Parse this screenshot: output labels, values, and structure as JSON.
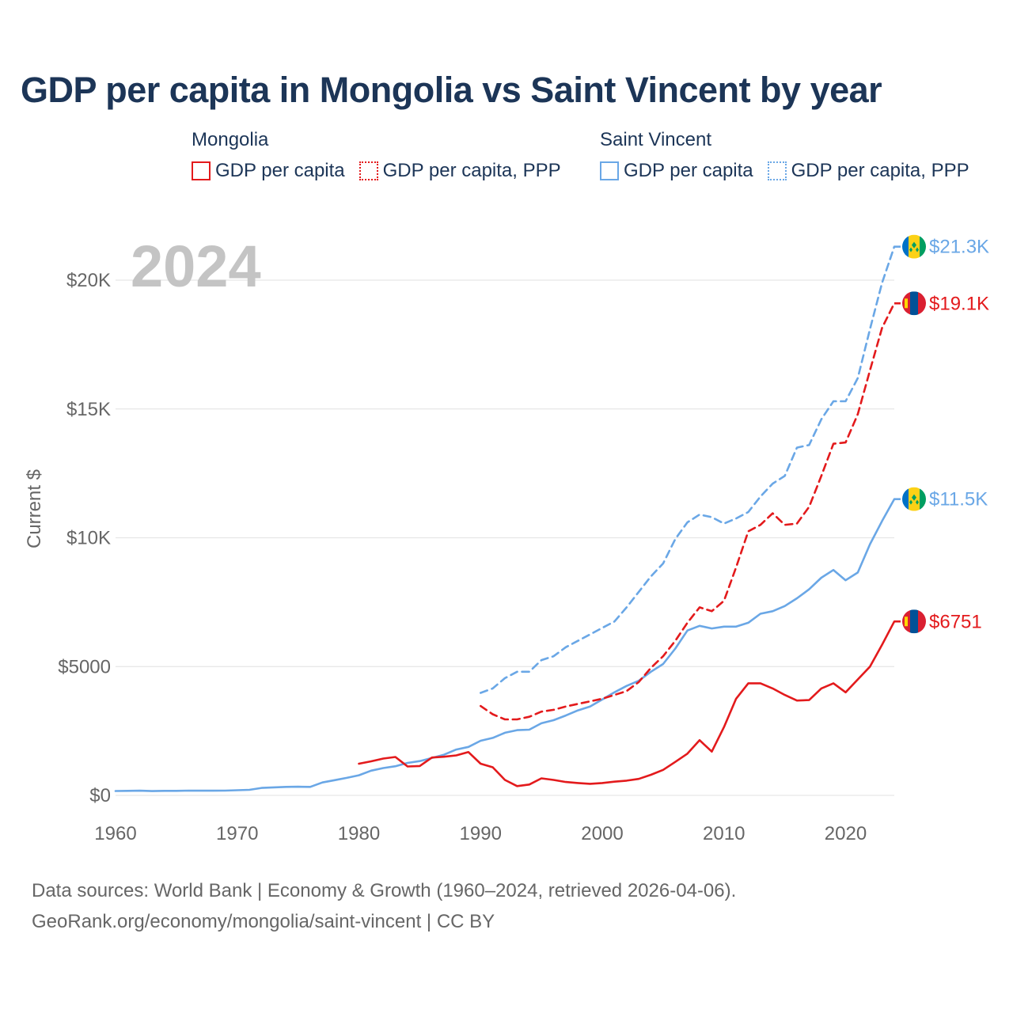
{
  "title": "GDP per capita in Mongolia vs Saint Vincent by year",
  "legend": {
    "groups": [
      {
        "name": "Mongolia",
        "entries": [
          {
            "label": "GDP per capita",
            "style": "solid",
            "color": "#e31a1c"
          },
          {
            "label": "GDP per capita, PPP",
            "style": "dotted",
            "color": "#e31a1c"
          }
        ]
      },
      {
        "name": "Saint Vincent",
        "entries": [
          {
            "label": "GDP per capita",
            "style": "solid",
            "color": "#6aa7e6"
          },
          {
            "label": "GDP per capita, PPP",
            "style": "dotted",
            "color": "#6aa7e6"
          }
        ]
      }
    ]
  },
  "year_watermark": "2024",
  "source_lines": [
    "Data sources: World Bank | Economy & Growth (1960–2024, retrieved 2026-04-06).",
    "GeoRank.org/economy/mongolia/saint-vincent | CC BY"
  ],
  "chart_data": {
    "type": "line",
    "title": "GDP per capita in Mongolia vs Saint Vincent by year",
    "xlabel": "",
    "ylabel": "Current $",
    "xlim": [
      1960,
      2024
    ],
    "ylim": [
      0,
      22000
    ],
    "grid": true,
    "legend_position": "top",
    "x_ticks": [
      1960,
      1970,
      1980,
      1990,
      2000,
      2010,
      2020
    ],
    "x_tick_labels": [
      "1960",
      "1970",
      "1980",
      "1990",
      "2000",
      "2010",
      "2020"
    ],
    "y_ticks": [
      0,
      5000,
      10000,
      15000,
      20000
    ],
    "y_tick_labels": [
      "$0",
      "$5000",
      "$10K",
      "$15K",
      "$20K"
    ],
    "series": [
      {
        "name": "Saint Vincent GDP per capita",
        "country": "Saint Vincent",
        "color": "#6aa7e6",
        "dash": "solid",
        "end_label": "$11.5K",
        "x": [
          1960,
          1961,
          1962,
          1963,
          1964,
          1965,
          1966,
          1967,
          1968,
          1969,
          1970,
          1971,
          1972,
          1973,
          1974,
          1975,
          1976,
          1977,
          1978,
          1979,
          1980,
          1981,
          1982,
          1983,
          1984,
          1985,
          1986,
          1987,
          1988,
          1989,
          1990,
          1991,
          1992,
          1993,
          1994,
          1995,
          1996,
          1997,
          1998,
          1999,
          2000,
          2001,
          2002,
          2003,
          2004,
          2005,
          2006,
          2007,
          2008,
          2009,
          2010,
          2011,
          2012,
          2013,
          2014,
          2015,
          2016,
          2017,
          2018,
          2019,
          2020,
          2021,
          2022,
          2023,
          2024
        ],
        "values": [
          170,
          175,
          180,
          165,
          175,
          175,
          185,
          180,
          180,
          185,
          200,
          215,
          290,
          310,
          330,
          335,
          330,
          500,
          590,
          680,
          780,
          960,
          1060,
          1130,
          1260,
          1330,
          1450,
          1580,
          1780,
          1880,
          2120,
          2230,
          2430,
          2530,
          2550,
          2800,
          2920,
          3100,
          3300,
          3450,
          3720,
          4000,
          4250,
          4450,
          4800,
          5100,
          5700,
          6400,
          6580,
          6480,
          6550,
          6550,
          6700,
          7050,
          7150,
          7350,
          7650,
          8000,
          8450,
          8750,
          8350,
          8650,
          9750,
          10650,
          11500
        ]
      },
      {
        "name": "Saint Vincent GDP per capita, PPP",
        "country": "Saint Vincent",
        "color": "#6aa7e6",
        "dash": "dashed",
        "end_label": "$21.3K",
        "x": [
          1990,
          1991,
          1992,
          1993,
          1994,
          1995,
          1996,
          1997,
          1998,
          1999,
          2000,
          2001,
          2002,
          2003,
          2004,
          2005,
          2006,
          2007,
          2008,
          2009,
          2010,
          2011,
          2012,
          2013,
          2014,
          2015,
          2016,
          2017,
          2018,
          2019,
          2020,
          2021,
          2022,
          2023,
          2024
        ],
        "values": [
          3980,
          4150,
          4550,
          4800,
          4800,
          5250,
          5400,
          5750,
          6000,
          6250,
          6500,
          6750,
          7300,
          7900,
          8500,
          9000,
          9950,
          10600,
          10900,
          10800,
          10550,
          10750,
          11000,
          11600,
          12100,
          12400,
          13500,
          13600,
          14600,
          15300,
          15300,
          16200,
          18100,
          19900,
          21300
        ]
      },
      {
        "name": "Mongolia GDP per capita",
        "country": "Mongolia",
        "color": "#e31a1c",
        "dash": "solid",
        "end_label": "$6751",
        "x": [
          1980,
          1981,
          1982,
          1983,
          1984,
          1985,
          1986,
          1987,
          1988,
          1989,
          1990,
          1991,
          1992,
          1993,
          1994,
          1995,
          1996,
          1997,
          1998,
          1999,
          2000,
          2001,
          2002,
          2003,
          2004,
          2005,
          2006,
          2007,
          2008,
          2009,
          2010,
          2011,
          2012,
          2013,
          2014,
          2015,
          2016,
          2017,
          2018,
          2019,
          2020,
          2021,
          2022,
          2023,
          2024
        ],
        "values": [
          1230,
          1320,
          1430,
          1490,
          1120,
          1140,
          1470,
          1500,
          1550,
          1680,
          1230,
          1090,
          600,
          360,
          420,
          660,
          600,
          520,
          480,
          450,
          480,
          530,
          570,
          640,
          800,
          990,
          1300,
          1620,
          2140,
          1700,
          2650,
          3750,
          4350,
          4350,
          4150,
          3900,
          3680,
          3700,
          4150,
          4350,
          4000,
          4500,
          5000,
          5850,
          6751
        ]
      },
      {
        "name": "Mongolia GDP per capita, PPP",
        "country": "Mongolia",
        "color": "#e31a1c",
        "dash": "dashed",
        "end_label": "$19.1K",
        "x": [
          1990,
          1991,
          1992,
          1993,
          1994,
          1995,
          1996,
          1997,
          1998,
          1999,
          2000,
          2001,
          2002,
          2003,
          2004,
          2005,
          2006,
          2007,
          2008,
          2009,
          2010,
          2011,
          2012,
          2013,
          2014,
          2015,
          2016,
          2017,
          2018,
          2019,
          2020,
          2021,
          2022,
          2023,
          2024
        ],
        "values": [
          3470,
          3150,
          2950,
          2950,
          3050,
          3250,
          3320,
          3450,
          3550,
          3650,
          3750,
          3900,
          4050,
          4400,
          4950,
          5400,
          6000,
          6700,
          7300,
          7150,
          7550,
          8850,
          10250,
          10500,
          10950,
          10500,
          10550,
          11200,
          12400,
          13650,
          13700,
          14800,
          16500,
          18150,
          19100
        ]
      }
    ]
  }
}
